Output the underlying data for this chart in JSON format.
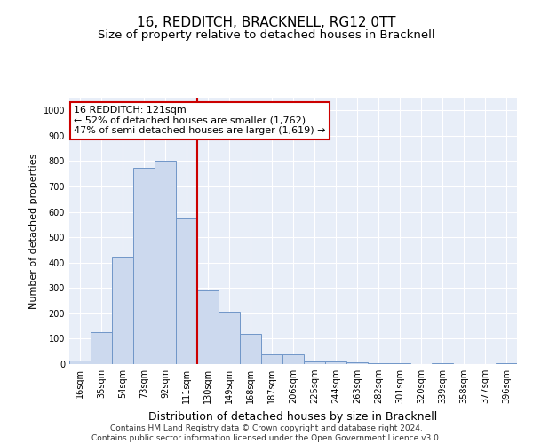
{
  "title": "16, REDDITCH, BRACKNELL, RG12 0TT",
  "subtitle": "Size of property relative to detached houses in Bracknell",
  "xlabel": "Distribution of detached houses by size in Bracknell",
  "ylabel": "Number of detached properties",
  "categories": [
    "16sqm",
    "35sqm",
    "54sqm",
    "73sqm",
    "92sqm",
    "111sqm",
    "130sqm",
    "149sqm",
    "168sqm",
    "187sqm",
    "206sqm",
    "225sqm",
    "244sqm",
    "263sqm",
    "282sqm",
    "301sqm",
    "320sqm",
    "339sqm",
    "358sqm",
    "377sqm",
    "396sqm"
  ],
  "values": [
    15,
    125,
    425,
    775,
    800,
    575,
    290,
    205,
    120,
    40,
    40,
    12,
    10,
    8,
    5,
    5,
    0,
    5,
    0,
    0,
    5
  ],
  "bar_color": "#ccd9ee",
  "bar_edge_color": "#7096c8",
  "bar_width": 1.0,
  "vline_x": 5.5,
  "vline_color": "#cc0000",
  "annotation_text": "16 REDDITCH: 121sqm\n← 52% of detached houses are smaller (1,762)\n47% of semi-detached houses are larger (1,619) →",
  "annotation_box_color": "#cc0000",
  "ylim": [
    0,
    1050
  ],
  "yticks": [
    0,
    100,
    200,
    300,
    400,
    500,
    600,
    700,
    800,
    900,
    1000
  ],
  "footer": "Contains HM Land Registry data © Crown copyright and database right 2024.\nContains public sector information licensed under the Open Government Licence v3.0.",
  "bg_color": "#e8eef8",
  "grid_color": "#ffffff",
  "title_fontsize": 11,
  "subtitle_fontsize": 9.5,
  "tick_fontsize": 7,
  "ylabel_fontsize": 8,
  "xlabel_fontsize": 9,
  "footer_fontsize": 6.5,
  "annotation_fontsize": 8
}
